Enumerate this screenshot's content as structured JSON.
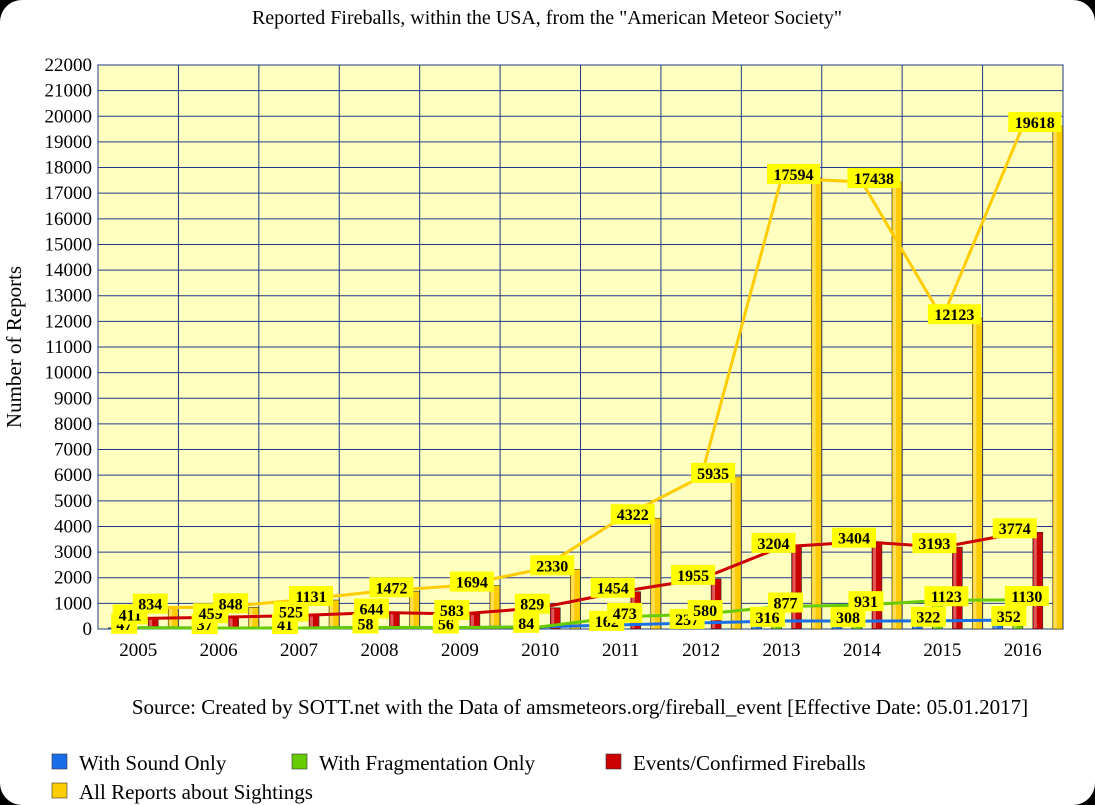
{
  "chart_data": {
    "type": "bar",
    "title": "Reported Fireballs, within the USA, from the \"American Meteor Society\"",
    "ylabel": "Number of Reports",
    "xlabel": "",
    "source": "Source: Created by SOTT.net with the Data of amsmeteors.org/fireball_event [Effective Date: 05.01.2017]",
    "ylim": [
      0,
      22000
    ],
    "ytick_step": 1000,
    "grid": true,
    "legend_position": "bottom",
    "categories": [
      "2005",
      "2006",
      "2007",
      "2008",
      "2009",
      "2010",
      "2011",
      "2012",
      "2013",
      "2014",
      "2015",
      "2016"
    ],
    "series": [
      {
        "name": "With Sound Only",
        "color": "#1a6ee8",
        "values": [
          47,
          37,
          41,
          58,
          56,
          84,
          162,
          237,
          316,
          308,
          322,
          352
        ]
      },
      {
        "name": "With Fragmentation Only",
        "color": "#66cc00",
        "values": [
          47,
          37,
          41,
          58,
          56,
          84,
          473,
          580,
          877,
          931,
          1123,
          1130
        ]
      },
      {
        "name": "Events/Confirmed Fireballs",
        "color": "#cc0000",
        "values": [
          411,
          459,
          525,
          644,
          583,
          829,
          1454,
          1955,
          3204,
          3404,
          3193,
          3774
        ]
      },
      {
        "name": "All Reports about Sightings",
        "color": "#ffcc00",
        "values": [
          834,
          848,
          1131,
          1472,
          1694,
          2330,
          4322,
          5935,
          17594,
          17438,
          12123,
          19618
        ]
      }
    ]
  }
}
